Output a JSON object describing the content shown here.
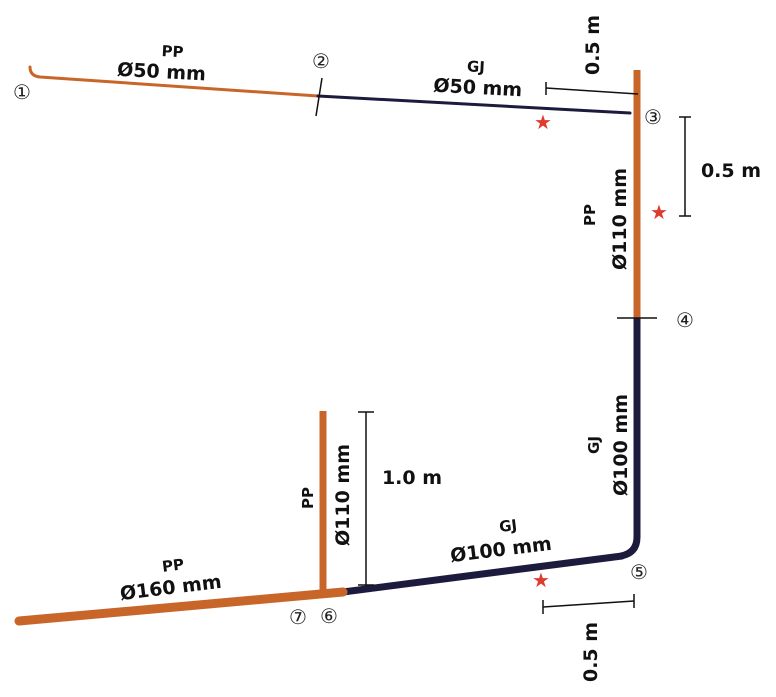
{
  "colors": {
    "pp": "#c8662a",
    "gj": "#1c1b3e",
    "dim": "#111111",
    "star": "#e03a2e",
    "background": "#ffffff"
  },
  "nodes": [
    "①",
    "②",
    "③",
    "④",
    "⑤",
    "⑥",
    "⑦"
  ],
  "pipe_labels": {
    "top_left": {
      "material": "PP",
      "size": "Ø50 mm"
    },
    "top_right": {
      "material": "GJ",
      "size": "Ø50 mm"
    },
    "vertical_upper": {
      "material": "PP",
      "size": "Ø110 mm"
    },
    "vertical_lower": {
      "material": "GJ",
      "size": "Ø100 mm"
    },
    "bottom_right": {
      "material": "GJ",
      "size": "Ø100 mm"
    },
    "bottom_left": {
      "material": "PP",
      "size": "Ø160 mm"
    },
    "riser": {
      "material": "PP",
      "size": "Ø110 mm"
    }
  },
  "dimensions": {
    "top_offset": "0.5 m",
    "right_offset": "0.5 m",
    "bottom_offset": "0.5 m",
    "riser_height": "1.0 m"
  },
  "markers": {
    "star_symbol": "★"
  }
}
